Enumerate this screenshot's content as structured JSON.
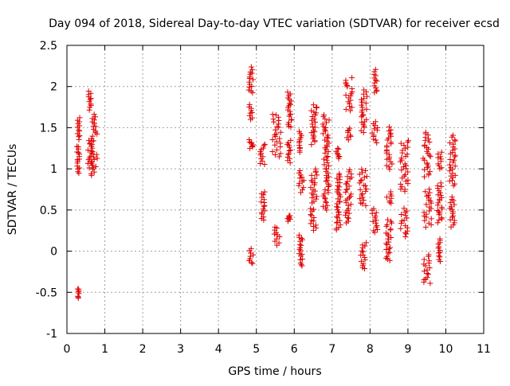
{
  "chart_data": {
    "type": "scatter",
    "title": "Day 094 of 2018, Sidereal Day-to-day VTEC variation (SDTVAR) for receiver ecsd",
    "xlabel": "GPS time / hours",
    "ylabel": "SDTVAR / TECUs",
    "xlim": [
      0,
      11
    ],
    "ylim": [
      -1,
      2.5
    ],
    "x_ticks": [
      0,
      1,
      2,
      3,
      4,
      5,
      6,
      7,
      8,
      9,
      10,
      11
    ],
    "y_ticks": [
      -1,
      -0.5,
      0,
      0.5,
      1,
      1.5,
      2,
      2.5
    ],
    "x_tick_labels": [
      "0",
      "1",
      "2",
      "3",
      "4",
      "5",
      "6",
      "7",
      "8",
      "9",
      "10",
      "11"
    ],
    "y_tick_labels": [
      "-1",
      "-0.5",
      "0",
      "0.5",
      "1",
      "1.5",
      "2",
      "2.5"
    ],
    "grid": true,
    "marker": "+",
    "marker_color": "#e00000",
    "series": [
      {
        "name": "SDTVAR",
        "clusters": [
          {
            "x": [
              0.27,
              0.33
            ],
            "y": [
              -0.58,
              -0.45
            ]
          },
          {
            "x": [
              0.26,
              0.33
            ],
            "y": [
              0.95,
              1.28
            ]
          },
          {
            "x": [
              0.27,
              0.34
            ],
            "y": [
              1.36,
              1.62
            ]
          },
          {
            "x": [
              0.57,
              0.66
            ],
            "y": [
              1.72,
              1.95
            ]
          },
          {
            "x": [
              0.55,
              0.68
            ],
            "y": [
              1.02,
              1.34
            ]
          },
          {
            "x": [
              0.62,
              0.8
            ],
            "y": [
              0.92,
              1.22
            ]
          },
          {
            "x": [
              0.64,
              0.8
            ],
            "y": [
              1.28,
              1.66
            ]
          },
          {
            "x": [
              4.8,
              4.92
            ],
            "y": [
              -0.16,
              0.03
            ]
          },
          {
            "x": [
              4.8,
              4.92
            ],
            "y": [
              1.25,
              1.35
            ]
          },
          {
            "x": [
              4.8,
              4.9
            ],
            "y": [
              1.6,
              1.78
            ]
          },
          {
            "x": [
              4.8,
              4.92
            ],
            "y": [
              1.92,
              2.23
            ]
          },
          {
            "x": [
              5.12,
              5.22
            ],
            "y": [
              0.38,
              0.72
            ]
          },
          {
            "x": [
              5.1,
              5.25
            ],
            "y": [
              1.05,
              1.3
            ]
          },
          {
            "x": [
              5.47,
              5.62
            ],
            "y": [
              0.08,
              0.3
            ]
          },
          {
            "x": [
              5.42,
              5.65
            ],
            "y": [
              1.15,
              1.67
            ]
          },
          {
            "x": [
              5.82,
              5.9
            ],
            "y": [
              0.37,
              0.44
            ]
          },
          {
            "x": [
              5.82,
              5.93
            ],
            "y": [
              1.5,
              1.93
            ]
          },
          {
            "x": [
              5.82,
              5.92
            ],
            "y": [
              1.08,
              1.35
            ]
          },
          {
            "x": [
              6.12,
              6.22
            ],
            "y": [
              -0.18,
              0.2
            ]
          },
          {
            "x": [
              6.12,
              6.25
            ],
            "y": [
              0.72,
              0.98
            ]
          },
          {
            "x": [
              6.12,
              6.2
            ],
            "y": [
              1.2,
              1.45
            ]
          },
          {
            "x": [
              6.42,
              6.58
            ],
            "y": [
              0.25,
              0.52
            ]
          },
          {
            "x": [
              6.42,
              6.6
            ],
            "y": [
              0.58,
              1.0
            ]
          },
          {
            "x": [
              6.45,
              6.6
            ],
            "y": [
              1.3,
              1.78
            ]
          },
          {
            "x": [
              6.75,
              6.92
            ],
            "y": [
              0.5,
              1.65
            ]
          },
          {
            "x": [
              7.1,
              7.22
            ],
            "y": [
              0.25,
              0.95
            ]
          },
          {
            "x": [
              7.1,
              7.2
            ],
            "y": [
              1.12,
              1.25
            ]
          },
          {
            "x": [
              7.35,
              7.52
            ],
            "y": [
              0.35,
              0.98
            ]
          },
          {
            "x": [
              7.38,
              7.5
            ],
            "y": [
              1.35,
              1.5
            ]
          },
          {
            "x": [
              7.35,
              7.55
            ],
            "y": [
              1.7,
              2.1
            ]
          },
          {
            "x": [
              7.75,
              7.9
            ],
            "y": [
              -0.22,
              0.1
            ]
          },
          {
            "x": [
              7.72,
              7.92
            ],
            "y": [
              0.55,
              1.0
            ]
          },
          {
            "x": [
              7.75,
              7.92
            ],
            "y": [
              1.45,
              1.95
            ]
          },
          {
            "x": [
              8.05,
              8.2
            ],
            "y": [
              0.22,
              0.52
            ]
          },
          {
            "x": [
              8.05,
              8.2
            ],
            "y": [
              1.32,
              1.58
            ]
          },
          {
            "x": [
              8.1,
              8.2
            ],
            "y": [
              1.92,
              2.2
            ]
          },
          {
            "x": [
              8.42,
              8.58
            ],
            "y": [
              -0.12,
              0.38
            ]
          },
          {
            "x": [
              8.42,
              8.58
            ],
            "y": [
              0.58,
              0.72
            ]
          },
          {
            "x": [
              8.42,
              8.58
            ],
            "y": [
              1.0,
              1.5
            ]
          },
          {
            "x": [
              8.8,
              9.0
            ],
            "y": [
              0.18,
              0.52
            ]
          },
          {
            "x": [
              8.8,
              9.02
            ],
            "y": [
              0.72,
              1.35
            ]
          },
          {
            "x": [
              9.4,
              9.6
            ],
            "y": [
              -0.4,
              -0.05
            ]
          },
          {
            "x": [
              9.4,
              9.62
            ],
            "y": [
              0.3,
              0.75
            ]
          },
          {
            "x": [
              9.4,
              9.6
            ],
            "y": [
              0.9,
              1.45
            ]
          },
          {
            "x": [
              9.78,
              9.88
            ],
            "y": [
              -0.12,
              0.15
            ]
          },
          {
            "x": [
              9.78,
              9.9
            ],
            "y": [
              0.35,
              0.82
            ]
          },
          {
            "x": [
              9.78,
              9.9
            ],
            "y": [
              1.0,
              1.2
            ]
          },
          {
            "x": [
              10.1,
              10.25
            ],
            "y": [
              0.3,
              0.65
            ]
          },
          {
            "x": [
              10.1,
              10.25
            ],
            "y": [
              0.8,
              1.4
            ]
          }
        ]
      }
    ]
  }
}
